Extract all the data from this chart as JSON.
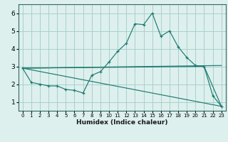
{
  "xlabel": "Humidex (Indice chaleur)",
  "bg_color": "#ddf0ee",
  "grid_color": "#aacfcb",
  "line_color": "#1e7a70",
  "xlim": [
    -0.5,
    23.5
  ],
  "ylim": [
    0.5,
    6.5
  ],
  "x_ticks": [
    0,
    1,
    2,
    3,
    4,
    5,
    6,
    7,
    8,
    9,
    10,
    11,
    12,
    13,
    14,
    15,
    16,
    17,
    18,
    19,
    20,
    21,
    22,
    23
  ],
  "y_ticks": [
    1,
    2,
    3,
    4,
    5,
    6
  ],
  "series1_x": [
    0,
    1,
    2,
    3,
    4,
    5,
    6,
    7,
    8,
    9,
    10,
    11,
    12,
    13,
    14,
    15,
    16,
    17,
    18,
    19,
    20,
    21,
    22,
    23
  ],
  "series1_y": [
    2.9,
    2.1,
    2.0,
    1.9,
    1.9,
    1.7,
    1.65,
    1.5,
    2.5,
    2.7,
    3.25,
    3.85,
    4.3,
    5.4,
    5.35,
    6.0,
    4.7,
    5.0,
    4.1,
    3.5,
    3.05,
    3.0,
    1.35,
    0.75
  ],
  "series2_x": [
    0,
    23
  ],
  "series2_y": [
    2.9,
    3.05
  ],
  "series3_x": [
    0,
    21,
    23
  ],
  "series3_y": [
    2.9,
    3.0,
    0.75
  ],
  "series4_x": [
    0,
    23
  ],
  "series4_y": [
    2.9,
    0.75
  ]
}
